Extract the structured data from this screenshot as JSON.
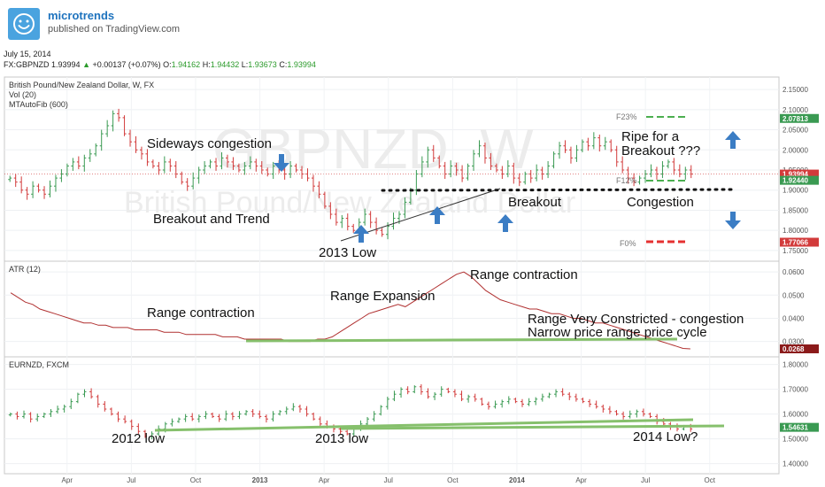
{
  "header": {
    "brand": "microtrends",
    "published": "published on TradingView.com",
    "date": "July 15, 2014",
    "symbol": "FX:GBPNZD",
    "last": "1.93994",
    "change": "+0.00137 (+0.07%)",
    "o_label": "O:",
    "o": "1.94162",
    "h_label": "H:",
    "h": "1.94432",
    "l_label": "L:",
    "l": "1.93673",
    "c_label": "C:",
    "c": "1.93994"
  },
  "colors": {
    "up": "#3a9a52",
    "down": "#d23b3b",
    "accent": "#3b7dc4",
    "support": "#86c06c",
    "fib": "#4caf50",
    "fib0": "#e53030"
  },
  "chart_data": [
    {
      "type": "candlestick",
      "name": "main",
      "labels": [
        "British Pound/New Zealand Dollar, W, FX",
        "Vol (20)",
        "MTAutoFib (600)"
      ],
      "watermark": "GBPNZD, W",
      "watermark2": "British Pound/New Zealand Dollar",
      "ylim": [
        1.73,
        2.17
      ],
      "y_ticks": [
        "2.15000",
        "2.10000",
        "2.05000",
        "2.00000",
        "1.95000",
        "1.90000",
        "1.85000",
        "1.80000",
        "1.75000"
      ],
      "y_tick_values": [
        2.15,
        2.1,
        2.05,
        2.0,
        1.95,
        1.9,
        1.85,
        1.8,
        1.75
      ],
      "price_tags": [
        {
          "value": 2.07813,
          "label": "2.07813",
          "color": "#3a9a52"
        },
        {
          "value": 1.93994,
          "label": "1.93994",
          "color": "#d23b3b"
        },
        {
          "value": 1.9244,
          "label": "1.92440",
          "color": "#3a9a52"
        },
        {
          "value": 1.77066,
          "label": "1.77066",
          "color": "#d23b3b"
        }
      ],
      "closes": [
        1.93,
        1.92,
        1.9,
        1.89,
        1.91,
        1.9,
        1.89,
        1.91,
        1.93,
        1.94,
        1.96,
        1.97,
        1.96,
        1.98,
        1.99,
        2.01,
        2.04,
        2.06,
        2.09,
        2.08,
        2.04,
        2.02,
        2.0,
        1.99,
        1.97,
        1.96,
        1.95,
        1.97,
        1.96,
        1.94,
        1.92,
        1.91,
        1.93,
        1.95,
        1.96,
        1.97,
        1.96,
        1.98,
        1.97,
        1.96,
        1.95,
        1.96,
        1.97,
        1.96,
        1.95,
        1.94,
        1.96,
        1.95,
        1.94,
        1.96,
        1.95,
        1.94,
        1.93,
        1.91,
        1.89,
        1.86,
        1.84,
        1.82,
        1.83,
        1.81,
        1.8,
        1.82,
        1.84,
        1.82,
        1.8,
        1.79,
        1.81,
        1.83,
        1.84,
        1.87,
        1.9,
        1.94,
        1.97,
        2.0,
        1.98,
        1.96,
        1.94,
        1.96,
        1.95,
        1.93,
        1.96,
        1.99,
        2.01,
        1.98,
        1.96,
        1.95,
        1.94,
        1.96,
        1.93,
        1.92,
        1.94,
        1.93,
        1.95,
        1.94,
        1.96,
        1.99,
        2.01,
        2.0,
        1.98,
        2.0,
        2.02,
        2.01,
        2.03,
        2.01,
        2.02,
        2.0,
        1.97,
        1.95,
        1.93,
        1.92,
        1.93,
        1.94,
        1.95,
        1.94,
        1.96,
        1.97,
        1.95,
        1.94,
        1.95,
        1.94
      ],
      "annotations": [
        "Sideways congestion",
        "Breakout and Trend",
        "2013 Low",
        "Breakout",
        "Ripe for a",
        "Breakout ???",
        "Congestion"
      ],
      "fib_levels": [
        {
          "label": "F23%",
          "value": 2.072
        },
        {
          "label": "F12%",
          "value": 1.926
        },
        {
          "label": "F0%",
          "value": 1.771
        }
      ]
    },
    {
      "type": "line",
      "name": "ATR (12)",
      "label": "ATR (12)",
      "ylim": [
        0.0245,
        0.0635
      ],
      "y_ticks": [
        "0.0600",
        "0.0500",
        "0.0400",
        "0.0300"
      ],
      "y_tick_values": [
        0.06,
        0.05,
        0.04,
        0.03
      ],
      "price_tag": {
        "value": 0.0268,
        "label": "0.0268"
      },
      "values": [
        0.051,
        0.049,
        0.047,
        0.046,
        0.044,
        0.043,
        0.042,
        0.041,
        0.04,
        0.039,
        0.038,
        0.038,
        0.037,
        0.037,
        0.036,
        0.036,
        0.036,
        0.035,
        0.035,
        0.035,
        0.035,
        0.034,
        0.034,
        0.034,
        0.033,
        0.033,
        0.033,
        0.033,
        0.033,
        0.032,
        0.032,
        0.032,
        0.031,
        0.031,
        0.031,
        0.031,
        0.031,
        0.031,
        0.03,
        0.03,
        0.03,
        0.03,
        0.031,
        0.031,
        0.032,
        0.034,
        0.036,
        0.038,
        0.04,
        0.042,
        0.043,
        0.044,
        0.045,
        0.046,
        0.045,
        0.047,
        0.049,
        0.051,
        0.053,
        0.055,
        0.057,
        0.059,
        0.06,
        0.058,
        0.055,
        0.052,
        0.05,
        0.048,
        0.047,
        0.046,
        0.045,
        0.044,
        0.044,
        0.043,
        0.042,
        0.042,
        0.041,
        0.04,
        0.04,
        0.039,
        0.038,
        0.038,
        0.037,
        0.036,
        0.035,
        0.034,
        0.033,
        0.032,
        0.031,
        0.03,
        0.029,
        0.028,
        0.027,
        0.0268
      ],
      "annotations": [
        "Range contraction",
        "Range Expansion",
        "Range contraction",
        "Range Very Constricted - congestion",
        "Narrow price range price cycle"
      ]
    },
    {
      "type": "candlestick",
      "name": "EURNZD, FXCM",
      "label": "EURNZD, FXCM",
      "ylim": [
        1.37,
        1.82
      ],
      "y_ticks": [
        "1.80000",
        "1.70000",
        "1.60000",
        "1.50000",
        "1.40000"
      ],
      "y_tick_values": [
        1.8,
        1.7,
        1.6,
        1.5,
        1.4
      ],
      "price_tag": {
        "value": 1.54631,
        "label": "1.54631"
      },
      "closes": [
        1.6,
        1.59,
        1.6,
        1.58,
        1.59,
        1.6,
        1.61,
        1.62,
        1.63,
        1.65,
        1.68,
        1.69,
        1.67,
        1.64,
        1.62,
        1.6,
        1.58,
        1.57,
        1.55,
        1.53,
        1.51,
        1.52,
        1.54,
        1.56,
        1.57,
        1.58,
        1.59,
        1.58,
        1.59,
        1.6,
        1.59,
        1.58,
        1.6,
        1.59,
        1.6,
        1.61,
        1.6,
        1.59,
        1.58,
        1.6,
        1.61,
        1.62,
        1.63,
        1.62,
        1.6,
        1.58,
        1.56,
        1.55,
        1.54,
        1.53,
        1.52,
        1.54,
        1.56,
        1.58,
        1.6,
        1.63,
        1.66,
        1.68,
        1.7,
        1.69,
        1.71,
        1.69,
        1.67,
        1.68,
        1.7,
        1.69,
        1.68,
        1.66,
        1.67,
        1.66,
        1.64,
        1.63,
        1.64,
        1.65,
        1.66,
        1.65,
        1.64,
        1.65,
        1.66,
        1.67,
        1.68,
        1.69,
        1.68,
        1.67,
        1.66,
        1.65,
        1.64,
        1.63,
        1.62,
        1.61,
        1.6,
        1.59,
        1.6,
        1.61,
        1.6,
        1.59,
        1.57,
        1.56,
        1.55,
        1.54,
        1.55,
        1.54
      ],
      "annotations": [
        "2012 low",
        "2013 low",
        "2014 Low?"
      ]
    }
  ],
  "x_ticks": [
    "Apr",
    "Jul",
    "Oct",
    "2013",
    "Apr",
    "Jul",
    "Oct",
    "2014",
    "Apr",
    "Jul",
    "Oct"
  ],
  "x_tick_months": [
    3,
    6,
    9,
    12,
    15,
    18,
    21,
    24,
    27,
    30,
    33
  ]
}
